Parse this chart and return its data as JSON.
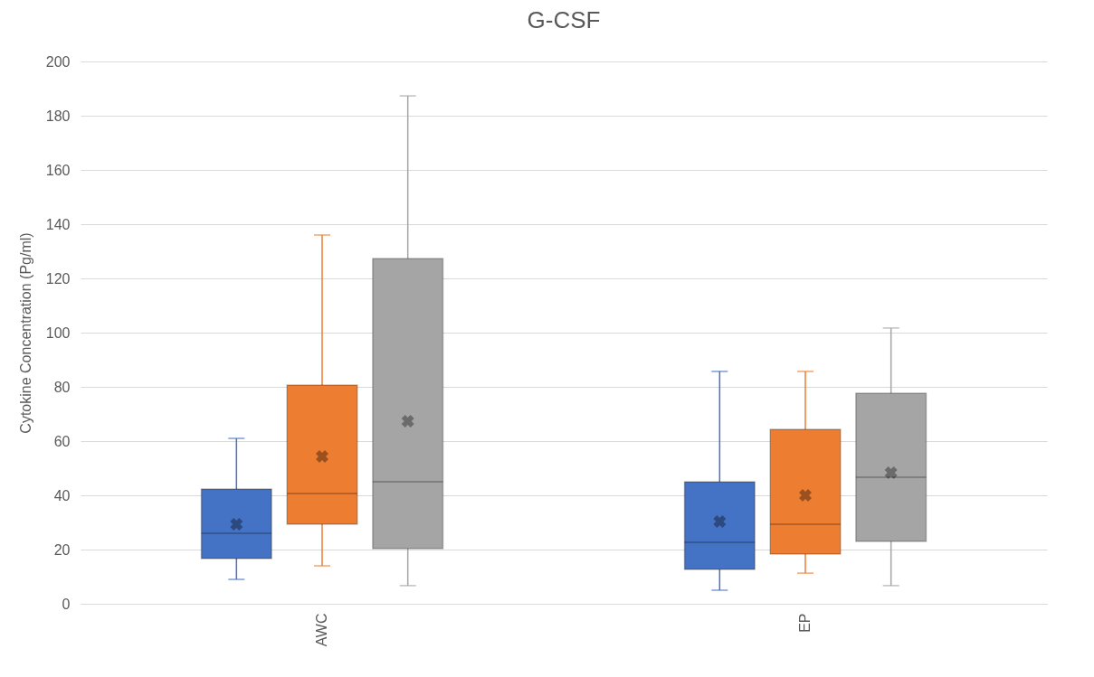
{
  "chart_data": {
    "type": "box",
    "title": "G-CSF",
    "ylabel": "Cytokine Concentration (Pg/ml)",
    "categories": [
      "AWC",
      "EP"
    ],
    "ylim": [
      0,
      200
    ],
    "yticks": [
      0,
      20,
      40,
      60,
      80,
      100,
      120,
      140,
      160,
      180,
      200
    ],
    "grid": "y",
    "legend": false,
    "series": [
      {
        "color": "#4472c4",
        "boxes": [
          {
            "low": 9,
            "q1": 16.7,
            "median": 26,
            "q3": 42.3,
            "high": 61,
            "mean": 29.3
          },
          {
            "low": 5,
            "q1": 12.7,
            "median": 22.7,
            "q3": 45,
            "high": 85.7,
            "mean": 30.3
          }
        ]
      },
      {
        "color": "#ed7d31",
        "boxes": [
          {
            "low": 14,
            "q1": 29.3,
            "median": 40.7,
            "q3": 80.7,
            "high": 136,
            "mean": 54.3
          },
          {
            "low": 11.3,
            "q1": 18.3,
            "median": 29.3,
            "q3": 64.3,
            "high": 85.7,
            "mean": 40
          }
        ]
      },
      {
        "color": "#a5a5a5",
        "boxes": [
          {
            "low": 6.7,
            "q1": 20.3,
            "median": 45,
            "q3": 127.3,
            "high": 187.3,
            "mean": 67.3
          },
          {
            "low": 6.7,
            "q1": 23,
            "median": 46.7,
            "q3": 77.7,
            "high": 101.7,
            "mean": 48.3
          }
        ]
      }
    ]
  }
}
